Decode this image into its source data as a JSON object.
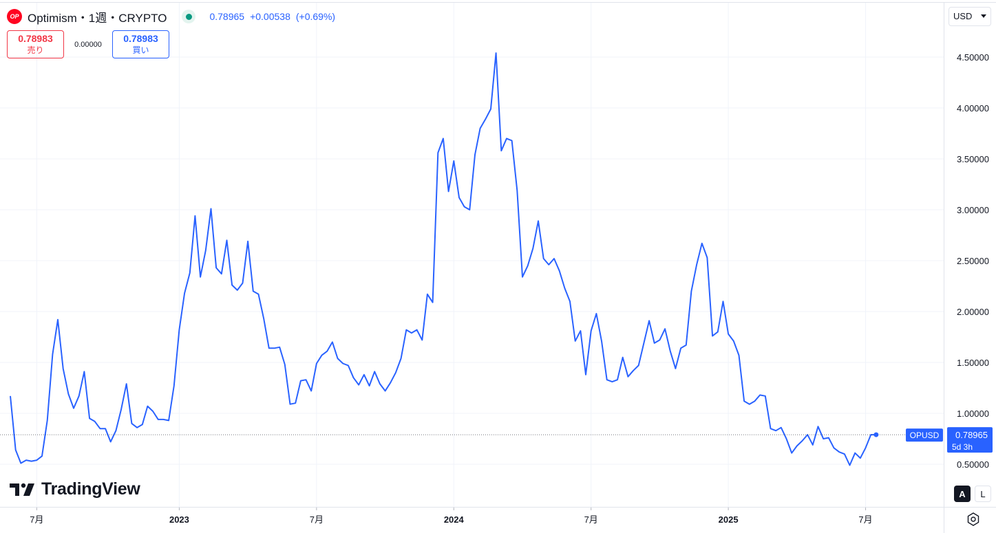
{
  "header": {
    "logo_text": "OP",
    "symbol": "Optimism・1週・CRYPTO",
    "price": "0.78965",
    "change": "+0.00538",
    "change_pct": "(+0.69%)"
  },
  "trade": {
    "sell_price": "0.78983",
    "sell_label": "売り",
    "spread": "0.00000",
    "buy_price": "0.78983",
    "buy_label": "買い"
  },
  "currency": "USD",
  "watermark": "TradingView",
  "scale_modes": {
    "auto": "A",
    "log": "L"
  },
  "colors": {
    "line": "#2962ff",
    "grid": "#f0f3fa",
    "text": "#131722",
    "tag_bg": "#2962ff"
  },
  "chart_data": {
    "type": "line",
    "x_tick_labels": [
      "7月",
      "2023",
      "7月",
      "2024",
      "7月",
      "2025",
      "7月"
    ],
    "x_tick_index": [
      5,
      32,
      58,
      84,
      110,
      136,
      162
    ],
    "y_ticks": [
      "0.50000",
      "1.00000",
      "1.50000",
      "2.00000",
      "2.50000",
      "3.00000",
      "3.50000",
      "4.00000",
      "4.50000"
    ],
    "ylim": [
      0.15,
      4.75
    ],
    "last_price_tag": {
      "symbol": "OPUSD",
      "value": "0.78965",
      "countdown": "5d 3h"
    },
    "series": [
      {
        "values": [
          1.17,
          0.64,
          0.51,
          0.54,
          0.53,
          0.54,
          0.58,
          0.93,
          1.58,
          1.92,
          1.44,
          1.19,
          1.05,
          1.17,
          1.41,
          0.95,
          0.92,
          0.85,
          0.85,
          0.72,
          0.83,
          1.04,
          1.29,
          0.9,
          0.86,
          0.89,
          1.07,
          1.02,
          0.94,
          0.94,
          0.93,
          1.27,
          1.82,
          2.18,
          2.38,
          2.94,
          2.34,
          2.6,
          3.01,
          2.43,
          2.37,
          2.7,
          2.26,
          2.21,
          2.28,
          2.69,
          2.2,
          2.17,
          1.93,
          1.64,
          1.64,
          1.65,
          1.48,
          1.09,
          1.1,
          1.32,
          1.33,
          1.22,
          1.49,
          1.57,
          1.61,
          1.7,
          1.54,
          1.49,
          1.47,
          1.35,
          1.28,
          1.38,
          1.27,
          1.41,
          1.29,
          1.22,
          1.3,
          1.4,
          1.54,
          1.82,
          1.79,
          1.82,
          1.72,
          2.17,
          2.09,
          3.56,
          3.7,
          3.18,
          3.48,
          3.12,
          3.03,
          3.0,
          3.54,
          3.8,
          3.89,
          3.99,
          4.54,
          3.58,
          3.7,
          3.68,
          3.19,
          2.34,
          2.45,
          2.62,
          2.89,
          2.52,
          2.46,
          2.52,
          2.4,
          2.23,
          2.1,
          1.71,
          1.81,
          1.38,
          1.81,
          1.98,
          1.71,
          1.33,
          1.31,
          1.33,
          1.55,
          1.36,
          1.42,
          1.47,
          1.69,
          1.91,
          1.69,
          1.72,
          1.83,
          1.61,
          1.44,
          1.64,
          1.67,
          2.2,
          2.46,
          2.67,
          2.53,
          1.76,
          1.8,
          2.1,
          1.78,
          1.71,
          1.57,
          1.12,
          1.09,
          1.12,
          1.18,
          1.17,
          0.85,
          0.83,
          0.86,
          0.75,
          0.61,
          0.68,
          0.73,
          0.79,
          0.69,
          0.87,
          0.75,
          0.76,
          0.66,
          0.62,
          0.6,
          0.49,
          0.61,
          0.56,
          0.66,
          0.79,
          0.79
        ]
      }
    ]
  }
}
